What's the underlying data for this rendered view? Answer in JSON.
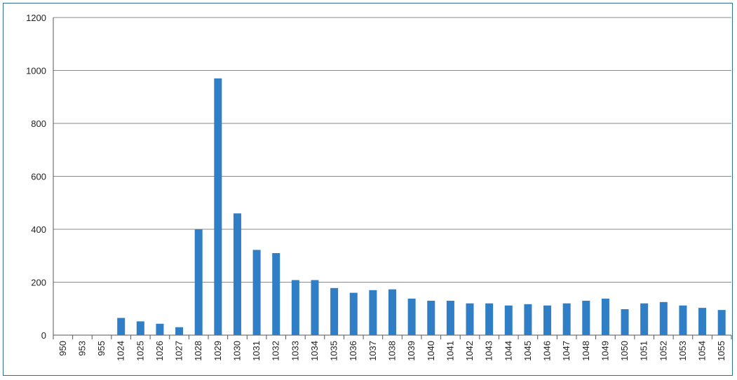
{
  "chart_data": {
    "type": "bar",
    "title": "",
    "xlabel": "",
    "ylabel": "",
    "ylim": [
      0,
      1200
    ],
    "yticks": [
      0,
      200,
      400,
      600,
      800,
      1000,
      1200
    ],
    "grid": "horizontal",
    "legend": "none",
    "bar_color": "#2f7ec6",
    "categories": [
      "950",
      "953",
      "955",
      "1024",
      "1025",
      "1026",
      "1027",
      "1028",
      "1029",
      "1030",
      "1031",
      "1032",
      "1033",
      "1034",
      "1035",
      "1036",
      "1037",
      "1038",
      "1039",
      "1040",
      "1041",
      "1042",
      "1043",
      "1044",
      "1045",
      "1046",
      "1047",
      "1048",
      "1049",
      "1050",
      "1051",
      "1052",
      "1053",
      "1054",
      "1055"
    ],
    "values": [
      0,
      0,
      0,
      65,
      52,
      43,
      30,
      400,
      970,
      460,
      322,
      310,
      208,
      208,
      178,
      160,
      170,
      173,
      138,
      130,
      130,
      120,
      120,
      112,
      117,
      112,
      120,
      130,
      138,
      98,
      120,
      125,
      112,
      103,
      95
    ]
  }
}
